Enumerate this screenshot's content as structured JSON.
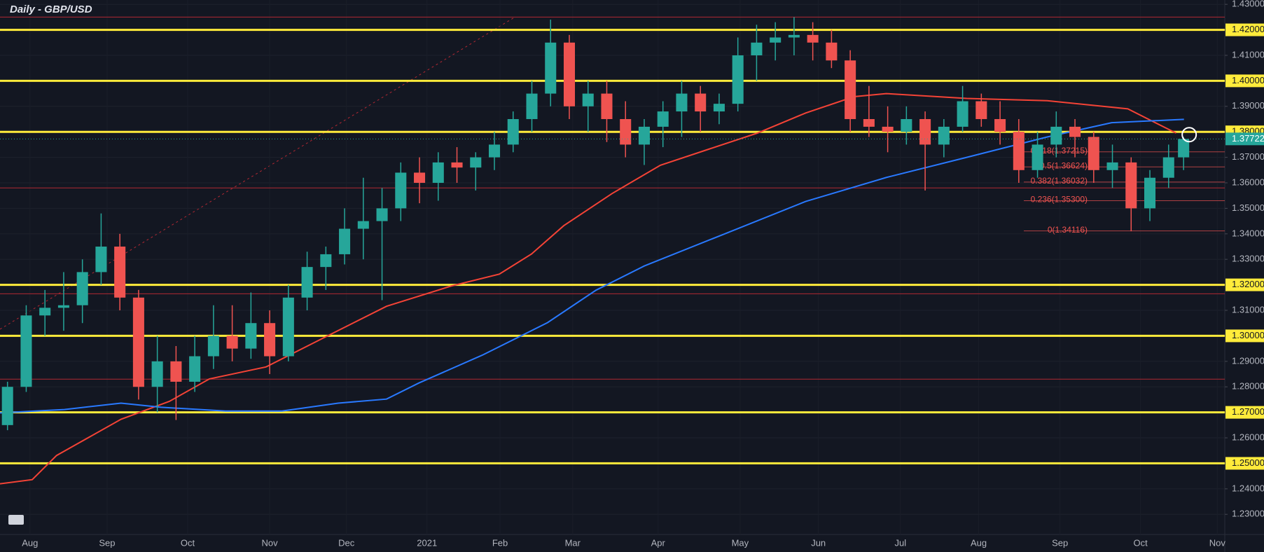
{
  "chart_data": {
    "type": "candlestick",
    "title": "Daily - GBP/USD",
    "x": [
      2,
      7,
      12,
      17,
      22,
      27,
      32,
      37,
      42,
      47,
      52,
      57,
      62,
      67,
      72,
      77,
      82,
      87,
      92,
      97,
      102,
      107,
      112,
      117,
      122,
      127,
      132,
      137,
      142,
      147,
      152,
      157,
      162,
      167,
      172,
      177,
      182,
      187,
      192,
      197,
      202,
      207,
      212,
      217,
      222,
      227,
      232,
      237,
      242,
      247,
      252,
      257,
      262,
      267,
      272,
      277,
      282,
      287,
      292,
      297,
      302,
      307,
      312,
      316
    ],
    "open": [
      1.265,
      1.28,
      1.308,
      1.311,
      1.312,
      1.325,
      1.335,
      1.315,
      1.28,
      1.29,
      1.282,
      1.292,
      1.3,
      1.295,
      1.305,
      1.292,
      1.315,
      1.327,
      1.332,
      1.342,
      1.345,
      1.35,
      1.364,
      1.36,
      1.368,
      1.366,
      1.37,
      1.375,
      1.385,
      1.395,
      1.415,
      1.39,
      1.395,
      1.385,
      1.375,
      1.382,
      1.388,
      1.395,
      1.388,
      1.391,
      1.41,
      1.415,
      1.417,
      1.418,
      1.415,
      1.408,
      1.385,
      1.382,
      1.38,
      1.385,
      1.375,
      1.382,
      1.392,
      1.385,
      1.38,
      1.365,
      1.375,
      1.382,
      1.378,
      1.365,
      1.368,
      1.35,
      1.362,
      1.37
    ],
    "high": [
      1.282,
      1.312,
      1.318,
      1.325,
      1.33,
      1.348,
      1.34,
      1.318,
      1.3,
      1.296,
      1.3,
      1.312,
      1.312,
      1.317,
      1.31,
      1.32,
      1.333,
      1.335,
      1.35,
      1.362,
      1.358,
      1.368,
      1.37,
      1.372,
      1.374,
      1.372,
      1.38,
      1.388,
      1.4,
      1.424,
      1.418,
      1.4,
      1.4,
      1.392,
      1.385,
      1.392,
      1.4,
      1.398,
      1.395,
      1.417,
      1.422,
      1.423,
      1.425,
      1.423,
      1.42,
      1.412,
      1.398,
      1.39,
      1.39,
      1.388,
      1.385,
      1.398,
      1.395,
      1.392,
      1.385,
      1.38,
      1.388,
      1.385,
      1.38,
      1.375,
      1.37,
      1.365,
      1.375,
      1.378
    ],
    "low": [
      1.263,
      1.278,
      1.3,
      1.302,
      1.305,
      1.32,
      1.31,
      1.275,
      1.27,
      1.267,
      1.278,
      1.287,
      1.29,
      1.291,
      1.285,
      1.29,
      1.31,
      1.318,
      1.328,
      1.33,
      1.314,
      1.345,
      1.352,
      1.353,
      1.36,
      1.357,
      1.365,
      1.372,
      1.38,
      1.39,
      1.385,
      1.38,
      1.376,
      1.37,
      1.367,
      1.374,
      1.378,
      1.38,
      1.383,
      1.388,
      1.4,
      1.408,
      1.41,
      1.408,
      1.405,
      1.38,
      1.378,
      1.372,
      1.375,
      1.357,
      1.37,
      1.38,
      1.382,
      1.375,
      1.36,
      1.362,
      1.37,
      1.37,
      1.36,
      1.358,
      1.341,
      1.345,
      1.358,
      1.365
    ],
    "close": [
      1.28,
      1.308,
      1.311,
      1.312,
      1.325,
      1.335,
      1.315,
      1.28,
      1.29,
      1.282,
      1.292,
      1.3,
      1.295,
      1.305,
      1.292,
      1.315,
      1.327,
      1.332,
      1.342,
      1.345,
      1.35,
      1.364,
      1.36,
      1.368,
      1.366,
      1.37,
      1.375,
      1.385,
      1.395,
      1.415,
      1.39,
      1.395,
      1.385,
      1.375,
      1.382,
      1.388,
      1.395,
      1.388,
      1.391,
      1.41,
      1.415,
      1.417,
      1.418,
      1.415,
      1.408,
      1.385,
      1.382,
      1.38,
      1.385,
      1.375,
      1.382,
      1.392,
      1.385,
      1.38,
      1.365,
      1.375,
      1.382,
      1.378,
      1.365,
      1.368,
      1.35,
      1.362,
      1.37,
      1.37722
    ],
    "up_color": "#26a69a",
    "down_color": "#ef5350",
    "xlim": [
      0,
      327
    ],
    "ylim": [
      1.2221,
      1.4317
    ],
    "xticks": [
      {
        "value": 8,
        "label": "Aug"
      },
      {
        "value": 28.6,
        "label": "Sep"
      },
      {
        "value": 50.1,
        "label": "Oct"
      },
      {
        "value": 72,
        "label": "Nov"
      },
      {
        "value": 92.5,
        "label": "Dec"
      },
      {
        "value": 114,
        "label": "2021"
      },
      {
        "value": 133.5,
        "label": "Feb"
      },
      {
        "value": 152.9,
        "label": "Mar"
      },
      {
        "value": 175.7,
        "label": "Apr"
      },
      {
        "value": 197.6,
        "label": "May"
      },
      {
        "value": 218.5,
        "label": "Jun"
      },
      {
        "value": 240.4,
        "label": "Jul"
      },
      {
        "value": 261.3,
        "label": "Aug"
      },
      {
        "value": 283,
        "label": "Sep"
      },
      {
        "value": 304.5,
        "label": "Oct"
      },
      {
        "value": 325,
        "label": "Nov"
      }
    ],
    "yticks": [
      {
        "value": 1.23,
        "label": "1.23000"
      },
      {
        "value": 1.24,
        "label": "1.24000"
      },
      {
        "value": 1.25,
        "label": "1.25000"
      },
      {
        "value": 1.26,
        "label": "1.26000"
      },
      {
        "value": 1.27,
        "label": "1.27000"
      },
      {
        "value": 1.28,
        "label": "1.28000"
      },
      {
        "value": 1.29,
        "label": "1.29000"
      },
      {
        "value": 1.3,
        "label": "1.30000"
      },
      {
        "value": 1.31,
        "label": "1.31000"
      },
      {
        "value": 1.32,
        "label": "1.32000"
      },
      {
        "value": 1.33,
        "label": "1.33000"
      },
      {
        "value": 1.34,
        "label": "1.34000"
      },
      {
        "value": 1.35,
        "label": "1.35000"
      },
      {
        "value": 1.36,
        "label": "1.36000"
      },
      {
        "value": 1.37,
        "label": "1.37000"
      },
      {
        "value": 1.38,
        "label": "1.38000"
      },
      {
        "value": 1.39,
        "label": "1.39000"
      },
      {
        "value": 1.4,
        "label": "1.40000"
      },
      {
        "value": 1.41,
        "label": "1.41000"
      },
      {
        "value": 1.42,
        "label": "1.42000"
      },
      {
        "value": 1.43,
        "label": "1.43000"
      }
    ],
    "moving_averages": [
      {
        "color": "#f44336",
        "x": [
          0,
          8.6,
          15.1,
          32.3,
          45.2,
          55.9,
          71,
          86,
          103.2,
          120.4,
          133.3,
          141.9,
          150.5,
          163.4,
          176.3,
          189.2,
          202.2,
          215.1,
          228,
          236.6,
          258.1,
          279.6,
          301.1,
          314
        ],
        "values": [
          1.242,
          1.2436,
          1.2531,
          1.2673,
          1.2743,
          1.2831,
          1.2878,
          1.2989,
          1.3116,
          1.3195,
          1.3242,
          1.3321,
          1.3432,
          1.3558,
          1.3669,
          1.3732,
          1.3795,
          1.3874,
          1.3938,
          1.395,
          1.3931,
          1.3922,
          1.389,
          1.3795
        ]
      },
      {
        "color": "#2979ff",
        "x": [
          0,
          17.2,
          32.3,
          43,
          60.2,
          75.3,
          90.3,
          103.2,
          111.8,
          129,
          146.2,
          159.1,
          172,
          193.5,
          215.1,
          236.6,
          258.1,
          279.6,
          296.8,
          316.1
        ],
        "values": [
          1.2698,
          1.2711,
          1.2736,
          1.272,
          1.2705,
          1.2705,
          1.2736,
          1.2752,
          1.2815,
          1.2926,
          1.3052,
          1.3179,
          1.3274,
          1.34,
          1.3527,
          1.3621,
          1.37,
          1.378,
          1.3836,
          1.3849
        ]
      }
    ],
    "levels": {
      "color": "#ffeb3b",
      "values": [
        1.42,
        1.4,
        1.38,
        1.32,
        1.3,
        1.27,
        1.25
      ]
    },
    "support_lines": {
      "color": "#b22833",
      "values": [
        1.425,
        1.358,
        1.3165,
        1.283
      ]
    },
    "fibonacci": [
      {
        "label": "0.618(1.37215)",
        "value": 1.37215
      },
      {
        "label": "0.5(1.36624)",
        "value": 1.36624
      },
      {
        "label": "0.382(1.36032)",
        "value": 1.36032
      },
      {
        "label": "0.236(1.35300)",
        "value": 1.353
      },
      {
        "label": "0(1.34116)",
        "value": 1.34116
      }
    ],
    "last_price": 1.37722
  }
}
